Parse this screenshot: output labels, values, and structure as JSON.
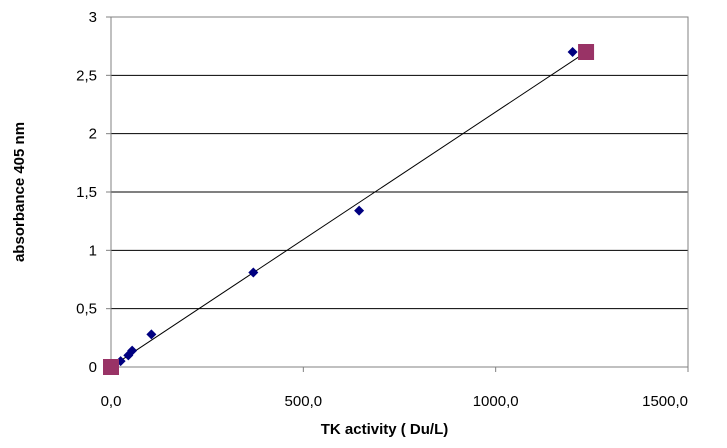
{
  "chart_data": {
    "type": "scatter",
    "title": "",
    "xlabel": "TK activity ( Du/L)",
    "ylabel": "absorbance 405 nm",
    "xlim": [
      0,
      1500
    ],
    "ylim": [
      0,
      3
    ],
    "x_ticks": [
      0,
      500,
      1000,
      1500
    ],
    "x_tick_labels": [
      "0,0",
      "500,0",
      "1000,0",
      "1500,0"
    ],
    "y_ticks": [
      0,
      0.5,
      1,
      1.5,
      2,
      2.5,
      3
    ],
    "y_tick_labels": [
      "0",
      "0,5",
      "1",
      "1,5",
      "2",
      "2,5",
      "3"
    ],
    "grid": "horizontal major gridlines",
    "legend": "none",
    "series": [
      {
        "marker": "diamond",
        "color": "#000080",
        "points": [
          {
            "x": 0,
            "y": 0
          },
          {
            "x": 25,
            "y": 0.05
          },
          {
            "x": 45,
            "y": 0.1
          },
          {
            "x": 55,
            "y": 0.14
          },
          {
            "x": 105,
            "y": 0.28
          },
          {
            "x": 370,
            "y": 0.81
          },
          {
            "x": 645,
            "y": 1.34
          },
          {
            "x": 1200,
            "y": 2.7
          }
        ]
      },
      {
        "marker": "square",
        "color": "#993366",
        "points": [
          {
            "x": 0,
            "y": 0
          },
          {
            "x": 1235,
            "y": 2.7
          }
        ]
      }
    ],
    "trendline": {
      "type": "linear",
      "color": "#000000",
      "x_range": [
        0,
        1235
      ],
      "slope": 0.002186,
      "intercept": 0
    }
  }
}
